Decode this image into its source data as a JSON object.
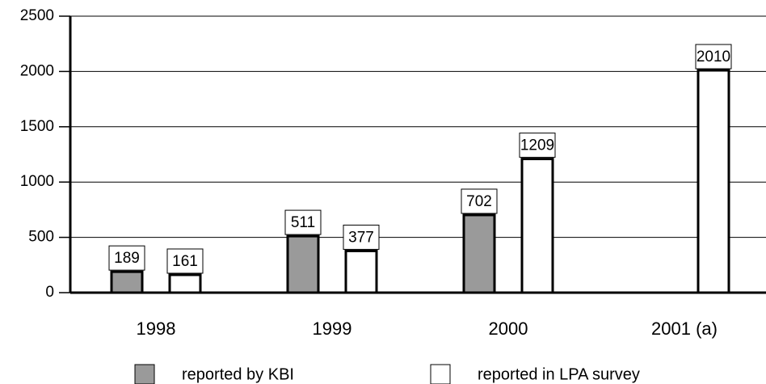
{
  "chart_data": {
    "type": "bar",
    "categories": [
      "1998",
      "1999",
      "2000",
      "2001 (a)"
    ],
    "series": [
      {
        "name": "reported by KBI",
        "color": "#9a9a9a",
        "values": [
          189,
          511,
          702,
          null
        ]
      },
      {
        "name": "reported in LPA survey",
        "color": "#ffffff",
        "values": [
          161,
          377,
          1209,
          2010
        ]
      }
    ],
    "ylim": [
      0,
      2500
    ],
    "yticks": [
      0,
      500,
      1000,
      1500,
      2000,
      2500
    ],
    "grid": true,
    "legend": "bottom"
  }
}
